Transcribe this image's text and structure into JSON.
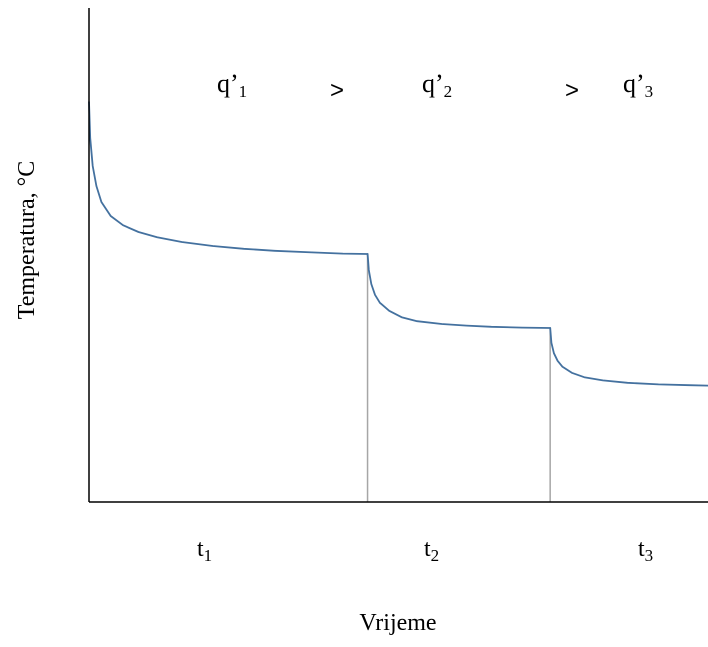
{
  "chart_data": {
    "type": "line",
    "title": "",
    "xlabel": "Vrijeme",
    "ylabel": "Temperatura, °C",
    "x_ticks": false,
    "y_ticks": false,
    "grid": false,
    "xlim": [
      0,
      10
    ],
    "ylim": [
      0,
      10
    ],
    "series": [
      {
        "color": "#44719f",
        "segments": [
          {
            "x": [
              0,
              0.02,
              0.06,
              0.12,
              0.2,
              0.35,
              0.55,
              0.8,
              1.1,
              1.5,
              2.0,
              2.5,
              3.0,
              3.6,
              4.1,
              4.5
            ],
            "y": [
              10.0,
              9.1,
              8.4,
              7.9,
              7.5,
              7.15,
              6.92,
              6.75,
              6.62,
              6.5,
              6.4,
              6.33,
              6.28,
              6.24,
              6.21,
              6.2
            ]
          },
          {
            "x": [
              4.5,
              4.52,
              4.56,
              4.62,
              4.7,
              4.85,
              5.05,
              5.3,
              5.7,
              6.1,
              6.5,
              7.0,
              7.45
            ],
            "y": [
              6.2,
              5.8,
              5.45,
              5.18,
              4.98,
              4.78,
              4.62,
              4.52,
              4.45,
              4.41,
              4.38,
              4.36,
              4.35
            ]
          },
          {
            "x": [
              7.45,
              7.47,
              7.51,
              7.57,
              7.65,
              7.8,
              8.0,
              8.3,
              8.7,
              9.2,
              9.7,
              10.0
            ],
            "y": [
              4.35,
              3.98,
              3.72,
              3.53,
              3.38,
              3.23,
              3.12,
              3.04,
              2.98,
              2.94,
              2.92,
              2.91
            ]
          }
        ]
      }
    ],
    "dividers": [
      {
        "x": 4.5,
        "y_top": 6.2,
        "color": "#a6a6a6"
      },
      {
        "x": 7.45,
        "y_top": 4.35,
        "color": "#a6a6a6"
      }
    ],
    "annotations": {
      "flux": [
        {
          "base": "q’",
          "sub": "1"
        },
        {
          "base": "q’",
          "sub": "2"
        },
        {
          "base": "q’",
          "sub": "3"
        }
      ],
      "comparators": [
        ">",
        ">"
      ],
      "intervals": [
        {
          "base": "t",
          "sub": "1"
        },
        {
          "base": "t",
          "sub": "2"
        },
        {
          "base": "t",
          "sub": "3"
        }
      ]
    }
  }
}
